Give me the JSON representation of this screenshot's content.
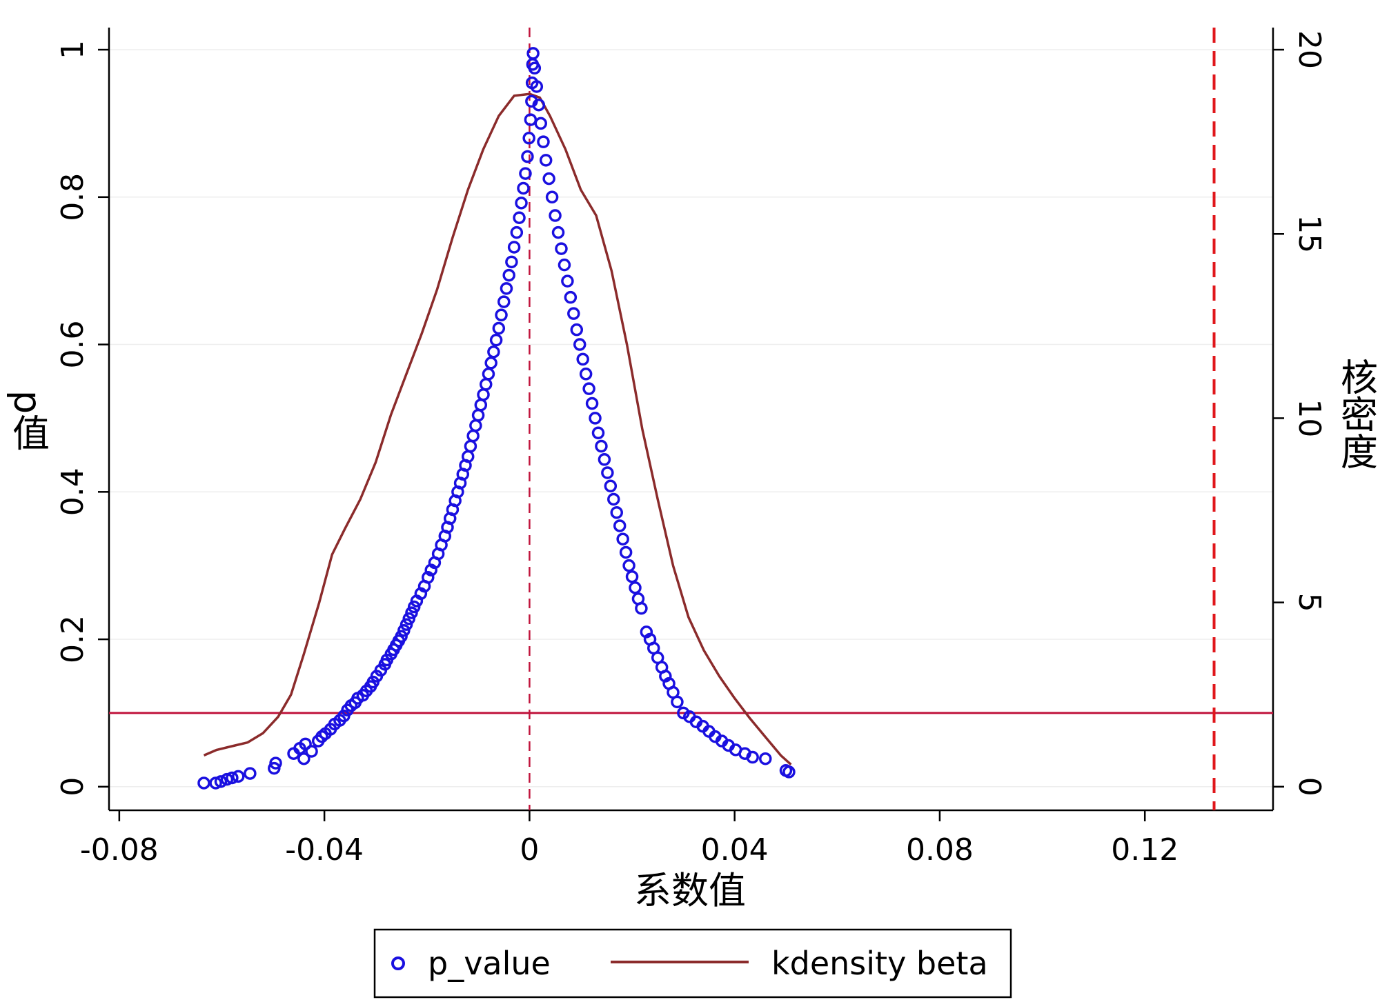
{
  "chart_data": {
    "type": "scatter",
    "xlabel": "系数值",
    "ylabel_left": "p值",
    "ylabel_right": "核密度",
    "xlim": [
      -0.082,
      0.145
    ],
    "ylim_left": [
      -0.032,
      1.03
    ],
    "ylim_right": [
      -0.64,
      20.6
    ],
    "x_ticks": [
      -0.08,
      -0.04,
      0,
      0.04,
      0.08,
      0.12
    ],
    "x_tick_labels": [
      "-0.08",
      "-0.04",
      "0",
      "0.04",
      "0.08",
      "0.12"
    ],
    "y_left_ticks": [
      0,
      0.2,
      0.4,
      0.6,
      0.8,
      1
    ],
    "y_left_tick_labels": [
      "0",
      "0.2",
      "0.4",
      "0.6",
      "0.8",
      "1"
    ],
    "y_right_ticks": [
      0,
      5,
      10,
      15,
      20
    ],
    "y_right_tick_labels": [
      "0",
      "5",
      "10",
      "15",
      "20"
    ],
    "grid": "horizontal",
    "legend_position": "bottom",
    "reference_lines": {
      "hline_p": 0.1,
      "vline_zero": 0,
      "vline_true_beta": 0.1335
    },
    "colors": {
      "scatter": "#1a10e0",
      "kdensity": "#8b2b2b",
      "ref_line": "#c0143c",
      "true_beta_line": "#e0161b"
    },
    "series": [
      {
        "name": "p_value",
        "kind": "scatter",
        "points": [
          [
            -0.0635,
            0.005
          ],
          [
            -0.0612,
            0.005
          ],
          [
            -0.0602,
            0.007
          ],
          [
            -0.059,
            0.01
          ],
          [
            -0.058,
            0.012
          ],
          [
            -0.0568,
            0.014
          ],
          [
            -0.0545,
            0.018
          ],
          [
            -0.0498,
            0.025
          ],
          [
            -0.0495,
            0.032
          ],
          [
            -0.046,
            0.045
          ],
          [
            -0.0448,
            0.052
          ],
          [
            -0.044,
            0.038
          ],
          [
            -0.0437,
            0.058
          ],
          [
            -0.0425,
            0.048
          ],
          [
            -0.0412,
            0.062
          ],
          [
            -0.0405,
            0.068
          ],
          [
            -0.0398,
            0.072
          ],
          [
            -0.0388,
            0.078
          ],
          [
            -0.038,
            0.085
          ],
          [
            -0.037,
            0.09
          ],
          [
            -0.0362,
            0.096
          ],
          [
            -0.0355,
            0.104
          ],
          [
            -0.0348,
            0.11
          ],
          [
            -0.034,
            0.114
          ],
          [
            -0.0335,
            0.12
          ],
          [
            -0.0325,
            0.124
          ],
          [
            -0.0318,
            0.13
          ],
          [
            -0.031,
            0.136
          ],
          [
            -0.0305,
            0.142
          ],
          [
            -0.0298,
            0.15
          ],
          [
            -0.029,
            0.158
          ],
          [
            -0.0282,
            0.166
          ],
          [
            -0.0278,
            0.172
          ],
          [
            -0.027,
            0.18
          ],
          [
            -0.0265,
            0.186
          ],
          [
            -0.026,
            0.192
          ],
          [
            -0.0255,
            0.198
          ],
          [
            -0.025,
            0.204
          ],
          [
            -0.0245,
            0.212
          ],
          [
            -0.024,
            0.22
          ],
          [
            -0.0235,
            0.228
          ],
          [
            -0.023,
            0.236
          ],
          [
            -0.0225,
            0.244
          ],
          [
            -0.022,
            0.252
          ],
          [
            -0.0212,
            0.262
          ],
          [
            -0.0205,
            0.272
          ],
          [
            -0.0198,
            0.284
          ],
          [
            -0.0192,
            0.294
          ],
          [
            -0.0185,
            0.304
          ],
          [
            -0.0178,
            0.316
          ],
          [
            -0.0172,
            0.328
          ],
          [
            -0.0165,
            0.34
          ],
          [
            -0.016,
            0.352
          ],
          [
            -0.0155,
            0.364
          ],
          [
            -0.015,
            0.376
          ],
          [
            -0.0145,
            0.388
          ],
          [
            -0.014,
            0.4
          ],
          [
            -0.0135,
            0.412
          ],
          [
            -0.013,
            0.424
          ],
          [
            -0.0125,
            0.436
          ],
          [
            -0.012,
            0.448
          ],
          [
            -0.0115,
            0.462
          ],
          [
            -0.011,
            0.476
          ],
          [
            -0.0105,
            0.49
          ],
          [
            -0.01,
            0.504
          ],
          [
            -0.0095,
            0.518
          ],
          [
            -0.009,
            0.532
          ],
          [
            -0.0085,
            0.546
          ],
          [
            -0.008,
            0.56
          ],
          [
            -0.0075,
            0.575
          ],
          [
            -0.007,
            0.59
          ],
          [
            -0.0065,
            0.606
          ],
          [
            -0.006,
            0.622
          ],
          [
            -0.0055,
            0.64
          ],
          [
            -0.005,
            0.658
          ],
          [
            -0.0045,
            0.676
          ],
          [
            -0.004,
            0.694
          ],
          [
            -0.0035,
            0.712
          ],
          [
            -0.003,
            0.732
          ],
          [
            -0.0025,
            0.752
          ],
          [
            -0.002,
            0.772
          ],
          [
            -0.0016,
            0.792
          ],
          [
            -0.0012,
            0.812
          ],
          [
            -0.0008,
            0.832
          ],
          [
            -0.0004,
            0.855
          ],
          [
            -0.0001,
            0.88
          ],
          [
            0.0002,
            0.905
          ],
          [
            0.0004,
            0.93
          ],
          [
            0.0005,
            0.955
          ],
          [
            0.0006,
            0.98
          ],
          [
            0.0007,
            0.995
          ],
          [
            0.001,
            0.975
          ],
          [
            0.0014,
            0.95
          ],
          [
            0.0018,
            0.925
          ],
          [
            0.0022,
            0.9
          ],
          [
            0.0027,
            0.875
          ],
          [
            0.0032,
            0.85
          ],
          [
            0.0038,
            0.825
          ],
          [
            0.0044,
            0.8
          ],
          [
            0.005,
            0.775
          ],
          [
            0.0056,
            0.752
          ],
          [
            0.0062,
            0.73
          ],
          [
            0.0068,
            0.708
          ],
          [
            0.0074,
            0.686
          ],
          [
            0.008,
            0.664
          ],
          [
            0.0086,
            0.642
          ],
          [
            0.0092,
            0.62
          ],
          [
            0.0098,
            0.6
          ],
          [
            0.0104,
            0.58
          ],
          [
            0.011,
            0.56
          ],
          [
            0.0116,
            0.54
          ],
          [
            0.0122,
            0.52
          ],
          [
            0.0128,
            0.5
          ],
          [
            0.0134,
            0.48
          ],
          [
            0.014,
            0.462
          ],
          [
            0.0146,
            0.444
          ],
          [
            0.0152,
            0.426
          ],
          [
            0.0158,
            0.408
          ],
          [
            0.0164,
            0.39
          ],
          [
            0.017,
            0.372
          ],
          [
            0.0176,
            0.354
          ],
          [
            0.0182,
            0.336
          ],
          [
            0.0188,
            0.318
          ],
          [
            0.0194,
            0.3
          ],
          [
            0.02,
            0.285
          ],
          [
            0.0206,
            0.27
          ],
          [
            0.0212,
            0.255
          ],
          [
            0.0218,
            0.242
          ],
          [
            0.0228,
            0.21
          ],
          [
            0.0235,
            0.2
          ],
          [
            0.0242,
            0.188
          ],
          [
            0.025,
            0.175
          ],
          [
            0.0258,
            0.162
          ],
          [
            0.0265,
            0.15
          ],
          [
            0.0272,
            0.14
          ],
          [
            0.028,
            0.128
          ],
          [
            0.0288,
            0.115
          ],
          [
            0.03,
            0.1
          ],
          [
            0.0312,
            0.095
          ],
          [
            0.0325,
            0.088
          ],
          [
            0.0338,
            0.082
          ],
          [
            0.035,
            0.075
          ],
          [
            0.0362,
            0.068
          ],
          [
            0.0375,
            0.062
          ],
          [
            0.0388,
            0.056
          ],
          [
            0.0402,
            0.05
          ],
          [
            0.042,
            0.045
          ],
          [
            0.0435,
            0.04
          ],
          [
            0.046,
            0.038
          ],
          [
            0.05,
            0.022
          ],
          [
            0.0506,
            0.02
          ]
        ]
      },
      {
        "name": "kdensity beta",
        "kind": "line",
        "axis": "right",
        "points": [
          [
            -0.0635,
            0.85
          ],
          [
            -0.061,
            1.0
          ],
          [
            -0.058,
            1.1
          ],
          [
            -0.055,
            1.2
          ],
          [
            -0.052,
            1.45
          ],
          [
            -0.049,
            1.9
          ],
          [
            -0.0465,
            2.5
          ],
          [
            -0.044,
            3.6
          ],
          [
            -0.041,
            5.0
          ],
          [
            -0.0385,
            6.3
          ],
          [
            -0.036,
            7.0
          ],
          [
            -0.033,
            7.8
          ],
          [
            -0.03,
            8.8
          ],
          [
            -0.027,
            10.1
          ],
          [
            -0.024,
            11.2
          ],
          [
            -0.021,
            12.3
          ],
          [
            -0.018,
            13.5
          ],
          [
            -0.015,
            14.9
          ],
          [
            -0.012,
            16.2
          ],
          [
            -0.009,
            17.3
          ],
          [
            -0.006,
            18.2
          ],
          [
            -0.003,
            18.75
          ],
          [
            0.0,
            18.8
          ],
          [
            0.002,
            18.7
          ],
          [
            0.004,
            18.2
          ],
          [
            0.007,
            17.3
          ],
          [
            0.01,
            16.2
          ],
          [
            0.013,
            15.5
          ],
          [
            0.016,
            14.0
          ],
          [
            0.019,
            12.0
          ],
          [
            0.022,
            9.7
          ],
          [
            0.025,
            7.8
          ],
          [
            0.028,
            6.0
          ],
          [
            0.031,
            4.6
          ],
          [
            0.034,
            3.7
          ],
          [
            0.037,
            3.0
          ],
          [
            0.04,
            2.4
          ],
          [
            0.043,
            1.85
          ],
          [
            0.046,
            1.35
          ],
          [
            0.049,
            0.85
          ],
          [
            0.051,
            0.6
          ]
        ]
      }
    ]
  }
}
